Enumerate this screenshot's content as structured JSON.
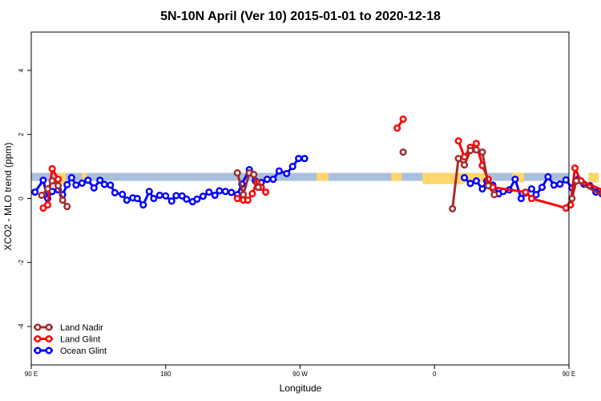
{
  "chart_data": {
    "type": "line",
    "title": "5N-10N April (Ver 10)   2015-01-01 to 2020-12-18",
    "xlabel": "Longitude",
    "ylabel": "XCO2 - MLO trend (ppm)",
    "xlim": [
      90,
      450
    ],
    "ylim": [
      -5.2,
      5.2
    ],
    "x_ticks": [
      {
        "value": 90,
        "label": "90 E"
      },
      {
        "value": 180,
        "label": "180"
      },
      {
        "value": 270,
        "label": "90 W"
      },
      {
        "value": 360,
        "label": "0"
      },
      {
        "value": 450,
        "label": "90 E"
      },
      {
        "value": 540,
        "label": "180"
      }
    ],
    "y_ticks": [
      {
        "value": -4,
        "label": "-4"
      },
      {
        "value": -2,
        "label": "-2"
      },
      {
        "value": 0,
        "label": "0"
      },
      {
        "value": 2,
        "label": "2"
      },
      {
        "value": 4,
        "label": "4"
      }
    ],
    "band": {
      "ymin": 0.55,
      "ymax": 0.8,
      "color": "#a9c0dd"
    },
    "land_patches": [
      {
        "xmin": 108,
        "xmax": 113,
        "ymin": 0.45,
        "ymax": 0.8
      },
      {
        "xmin": 124,
        "xmax": 127,
        "ymin": 0.5,
        "ymax": 0.8
      },
      {
        "xmin": 281,
        "xmax": 289,
        "ymin": 0.55,
        "ymax": 0.8
      },
      {
        "xmin": 331,
        "xmax": 338,
        "ymin": 0.55,
        "ymax": 0.8
      },
      {
        "xmin": 352,
        "xmax": 380,
        "ymin": 0.45,
        "ymax": 0.8
      },
      {
        "xmin": 380,
        "xmax": 395,
        "ymin": 0.5,
        "ymax": 0.8
      },
      {
        "xmin": 412,
        "xmax": 420,
        "ymin": 0.5,
        "ymax": 0.8
      },
      {
        "xmin": 434,
        "xmax": 438,
        "ymin": 0.55,
        "ymax": 0.8
      },
      {
        "xmin": 463,
        "xmax": 470,
        "ymin": 0.5,
        "ymax": 0.8
      },
      {
        "xmin": 484,
        "xmax": 488,
        "ymin": 0.55,
        "ymax": 0.8
      }
    ],
    "series": [
      {
        "name": "Ocean Glint",
        "color": "#0000ff",
        "points": [
          [
            92.5,
            0.2
          ],
          [
            98,
            0.57
          ],
          [
            101,
            0.0
          ],
          [
            104,
            0.22
          ],
          [
            108,
            0.27
          ],
          [
            111,
            0.12
          ],
          [
            114,
            0.43
          ],
          [
            117,
            0.65
          ],
          [
            120,
            0.42
          ],
          [
            124,
            0.48
          ],
          [
            128,
            0.57
          ],
          [
            132,
            0.33
          ],
          [
            136,
            0.57
          ],
          [
            139,
            0.44
          ],
          [
            143,
            0.42
          ],
          [
            146,
            0.18
          ],
          [
            151,
            0.13
          ],
          [
            154,
            -0.05
          ],
          [
            158,
            0.02
          ],
          [
            161,
            0.0
          ],
          [
            165,
            -0.2
          ],
          [
            169,
            0.22
          ],
          [
            172,
            0.0
          ],
          [
            176,
            0.1
          ],
          [
            180,
            0.08
          ],
          [
            184,
            -0.08
          ],
          [
            187,
            0.09
          ],
          [
            191,
            0.08
          ],
          [
            194,
            -0.02
          ],
          [
            198,
            -0.1
          ],
          [
            201,
            -0.02
          ],
          [
            205,
            0.07
          ],
          [
            209,
            0.2
          ],
          [
            213,
            0.1
          ],
          [
            216,
            0.24
          ],
          [
            220,
            0.22
          ],
          [
            224,
            0.19
          ],
          [
            228,
            0.12
          ],
          [
            231,
            0.45
          ],
          [
            236,
            0.9
          ],
          [
            240,
            0.55
          ],
          [
            244,
            0.5
          ],
          [
            248,
            0.6
          ],
          [
            252,
            0.6
          ],
          [
            256,
            0.86
          ],
          [
            261,
            0.78
          ],
          [
            265,
            1.0
          ],
          [
            269,
            1.25
          ],
          [
            273,
            1.25
          ],
          [
            380,
            0.65
          ],
          [
            384,
            0.47
          ],
          [
            388,
            0.55
          ],
          [
            392,
            0.3
          ],
          [
            395,
            0.55
          ],
          [
            399,
            0.42
          ],
          [
            403,
            0.15
          ],
          [
            406,
            0.22
          ],
          [
            410,
            0.27
          ],
          [
            414,
            0.6
          ],
          [
            418,
            0.0
          ],
          [
            421,
            0.17
          ],
          [
            425,
            0.3
          ],
          [
            428,
            0.12
          ],
          [
            432,
            0.35
          ],
          [
            436,
            0.68
          ],
          [
            440,
            0.42
          ],
          [
            444,
            0.45
          ],
          [
            448,
            0.58
          ],
          [
            452,
            0.33
          ],
          [
            456,
            0.6
          ],
          [
            460,
            0.45
          ],
          [
            464,
            0.4
          ],
          [
            468,
            0.2
          ],
          [
            472,
            0.15
          ],
          [
            476,
            0.0
          ]
        ]
      },
      {
        "name": "Land Glint",
        "color": "#ff0000",
        "points": [
          [
            98,
            -0.3
          ],
          [
            101,
            -0.2
          ],
          [
            104,
            0.93
          ],
          [
            108,
            0.6
          ],
          [
            228,
            0.0
          ],
          [
            232,
            -0.05
          ],
          [
            235,
            -0.05
          ],
          [
            238,
            0.15
          ],
          [
            241,
            0.5
          ],
          [
            244,
            0.35
          ],
          [
            247,
            0.2
          ],
          [
            335,
            2.2
          ],
          [
            339,
            2.48
          ],
          [
            376,
            1.8
          ],
          [
            380,
            1.3
          ],
          [
            384,
            1.6
          ],
          [
            388,
            1.72
          ],
          [
            392,
            1.03
          ],
          [
            396,
            0.6
          ],
          [
            399,
            0.35
          ],
          [
            421,
            0.2
          ],
          [
            425,
            0.0
          ],
          [
            448,
            -0.3
          ],
          [
            451,
            -0.2
          ],
          [
            454,
            0.95
          ],
          [
            458,
            0.55
          ],
          [
            473,
            0.25
          ],
          [
            476,
            0.1
          ]
        ]
      },
      {
        "name": "Land Nadir",
        "color": "#a52a2a",
        "points": [
          [
            97,
            0.1
          ],
          [
            101,
            0.3
          ],
          [
            104,
            0.55
          ],
          [
            108,
            0.4
          ],
          [
            111,
            -0.05
          ],
          [
            114,
            -0.25
          ],
          [
            228,
            0.8
          ],
          [
            232,
            0.12
          ],
          [
            236,
            0.8
          ],
          [
            239,
            0.75
          ],
          [
            242,
            0.35
          ],
          [
            339,
            1.45
          ],
          [
            372,
            -0.32
          ],
          [
            376,
            1.25
          ],
          [
            380,
            1.05
          ],
          [
            384,
            1.5
          ],
          [
            388,
            1.52
          ],
          [
            392,
            1.45
          ],
          [
            396,
            0.4
          ],
          [
            400,
            0.12
          ],
          [
            452,
            0.0
          ],
          [
            455,
            0.55
          ],
          [
            476,
            0.0
          ],
          [
            479,
            -0.25
          ]
        ]
      }
    ],
    "legend_position": "bottom-left",
    "grid": false
  }
}
